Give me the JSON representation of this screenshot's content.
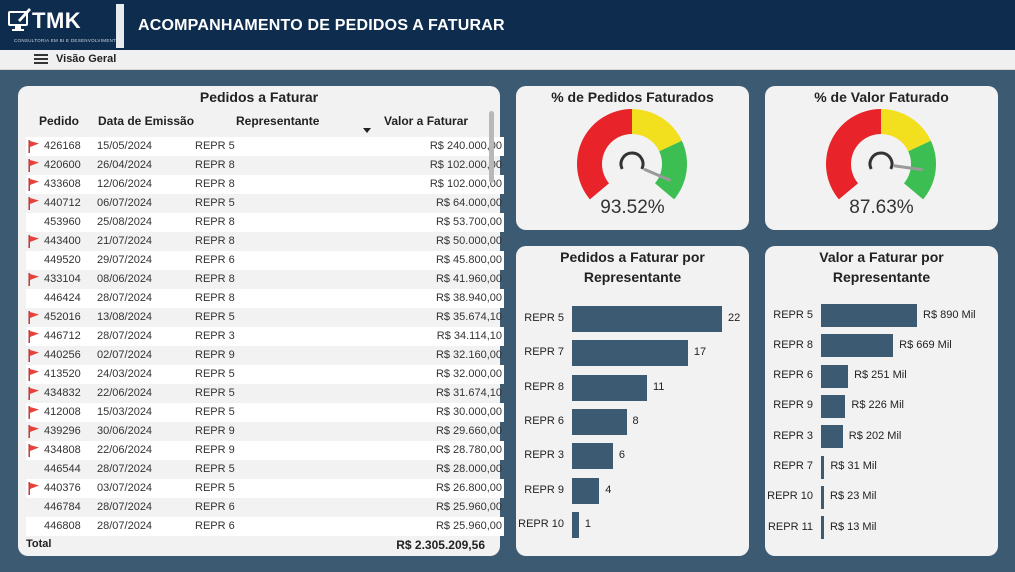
{
  "header": {
    "logo_text": "TMK",
    "logo_subtitle": "CONSULTORIA EM BI E DESENVOLVIMENTO",
    "title": "ACOMPANHAMENTO DE PEDIDOS A FATURAR"
  },
  "nav": {
    "label": "Visão Geral"
  },
  "table": {
    "title": "Pedidos a Faturar",
    "columns": [
      "Pedido",
      "Data de Emissão",
      "Representante",
      "Valor a Faturar"
    ],
    "rows": [
      {
        "flag": true,
        "pedido": "426168",
        "data": "15/05/2024",
        "rep": "REPR 5",
        "valor": "R$ 240.000,00"
      },
      {
        "flag": true,
        "pedido": "420600",
        "data": "26/04/2024",
        "rep": "REPR 8",
        "valor": "R$ 102.000,00"
      },
      {
        "flag": true,
        "pedido": "433608",
        "data": "12/06/2024",
        "rep": "REPR 8",
        "valor": "R$ 102.000,00"
      },
      {
        "flag": true,
        "pedido": "440712",
        "data": "06/07/2024",
        "rep": "REPR 5",
        "valor": "R$ 64.000,00"
      },
      {
        "flag": false,
        "pedido": "453960",
        "data": "25/08/2024",
        "rep": "REPR 8",
        "valor": "R$ 53.700,00"
      },
      {
        "flag": true,
        "pedido": "443400",
        "data": "21/07/2024",
        "rep": "REPR 8",
        "valor": "R$ 50.000,00"
      },
      {
        "flag": false,
        "pedido": "449520",
        "data": "29/07/2024",
        "rep": "REPR 6",
        "valor": "R$ 45.800,00"
      },
      {
        "flag": true,
        "pedido": "433104",
        "data": "08/06/2024",
        "rep": "REPR 8",
        "valor": "R$ 41.960,00"
      },
      {
        "flag": false,
        "pedido": "446424",
        "data": "28/07/2024",
        "rep": "REPR 8",
        "valor": "R$ 38.940,00"
      },
      {
        "flag": true,
        "pedido": "452016",
        "data": "13/08/2024",
        "rep": "REPR 5",
        "valor": "R$ 35.674,10"
      },
      {
        "flag": true,
        "pedido": "446712",
        "data": "28/07/2024",
        "rep": "REPR 3",
        "valor": "R$ 34.114,10"
      },
      {
        "flag": true,
        "pedido": "440256",
        "data": "02/07/2024",
        "rep": "REPR 9",
        "valor": "R$ 32.160,00"
      },
      {
        "flag": true,
        "pedido": "413520",
        "data": "24/03/2024",
        "rep": "REPR 5",
        "valor": "R$ 32.000,00"
      },
      {
        "flag": true,
        "pedido": "434832",
        "data": "22/06/2024",
        "rep": "REPR 5",
        "valor": "R$ 31.674,10"
      },
      {
        "flag": true,
        "pedido": "412008",
        "data": "15/03/2024",
        "rep": "REPR 5",
        "valor": "R$ 30.000,00"
      },
      {
        "flag": true,
        "pedido": "439296",
        "data": "30/06/2024",
        "rep": "REPR 9",
        "valor": "R$ 29.660,00"
      },
      {
        "flag": true,
        "pedido": "434808",
        "data": "22/06/2024",
        "rep": "REPR 9",
        "valor": "R$ 28.780,00"
      },
      {
        "flag": false,
        "pedido": "446544",
        "data": "28/07/2024",
        "rep": "REPR 5",
        "valor": "R$ 28.000,00"
      },
      {
        "flag": true,
        "pedido": "440376",
        "data": "03/07/2024",
        "rep": "REPR 5",
        "valor": "R$ 26.800,00"
      },
      {
        "flag": false,
        "pedido": "446784",
        "data": "28/07/2024",
        "rep": "REPR 6",
        "valor": "R$ 25.960,00"
      },
      {
        "flag": false,
        "pedido": "446808",
        "data": "28/07/2024",
        "rep": "REPR 6",
        "valor": "R$ 25.960,00"
      }
    ],
    "total_label": "Total",
    "total_value": "R$ 2.305.209,56"
  },
  "gauges": [
    {
      "title": "% de Pedidos Faturados",
      "value_text": "93.52%",
      "value": 93.52
    },
    {
      "title": "% de Valor Faturado",
      "value_text": "87.63%",
      "value": 87.63
    }
  ],
  "colors": {
    "header": "#0e2d4e",
    "background": "#3d5a73",
    "bar": "#3d5a73",
    "gauge_red": "#e8232a",
    "gauge_yellow": "#f2e01f",
    "gauge_green": "#3dbe52",
    "flag": "#e8403a"
  },
  "chart_data": [
    {
      "type": "bar",
      "title": "Pedidos a Faturar por Representante",
      "categories": [
        "REPR 5",
        "REPR 7",
        "REPR 8",
        "REPR 6",
        "REPR 3",
        "REPR 9",
        "REPR 10"
      ],
      "values": [
        22,
        17,
        11,
        8,
        6,
        4,
        1
      ],
      "labels": [
        "22",
        "17",
        "11",
        "8",
        "6",
        "4",
        "1"
      ],
      "orientation": "horizontal"
    },
    {
      "type": "bar",
      "title": "Valor a Faturar por Representante",
      "categories": [
        "REPR 5",
        "REPR 8",
        "REPR 6",
        "REPR 9",
        "REPR 3",
        "REPR 7",
        "REPR 10",
        "REPR 11"
      ],
      "values": [
        890,
        669,
        251,
        226,
        202,
        31,
        23,
        13
      ],
      "labels": [
        "R$ 890 Mil",
        "R$ 669 Mil",
        "R$ 251 Mil",
        "R$ 226 Mil",
        "R$ 202 Mil",
        "R$ 31 Mil",
        "R$ 23 Mil",
        "R$ 13 Mil"
      ],
      "orientation": "horizontal"
    }
  ]
}
